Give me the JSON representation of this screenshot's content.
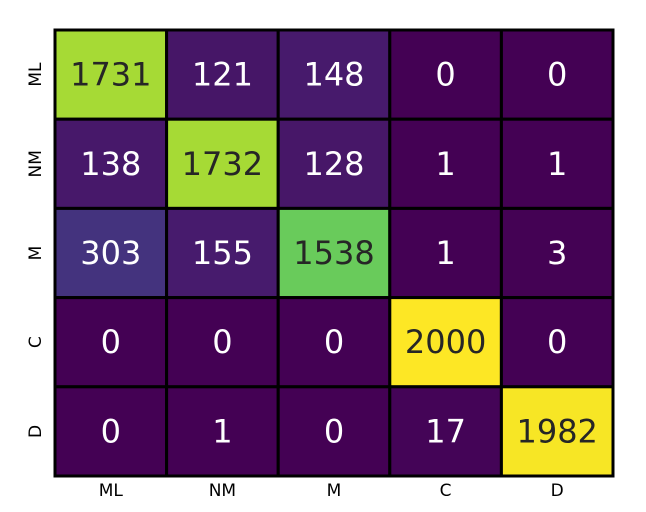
{
  "chart_data": {
    "type": "heatmap",
    "rows": [
      "ML",
      "NM",
      "M",
      "C",
      "D"
    ],
    "columns": [
      "ML",
      "NM",
      "M",
      "C",
      "D"
    ],
    "values": [
      [
        1731,
        121,
        148,
        0,
        0
      ],
      [
        138,
        1732,
        128,
        1,
        1
      ],
      [
        303,
        155,
        1538,
        1,
        3
      ],
      [
        0,
        0,
        0,
        2000,
        0
      ],
      [
        0,
        1,
        0,
        17,
        1982
      ]
    ],
    "value_range": [
      0,
      2000
    ],
    "colormap": "viridis",
    "cell_border_color": "#000000"
  }
}
